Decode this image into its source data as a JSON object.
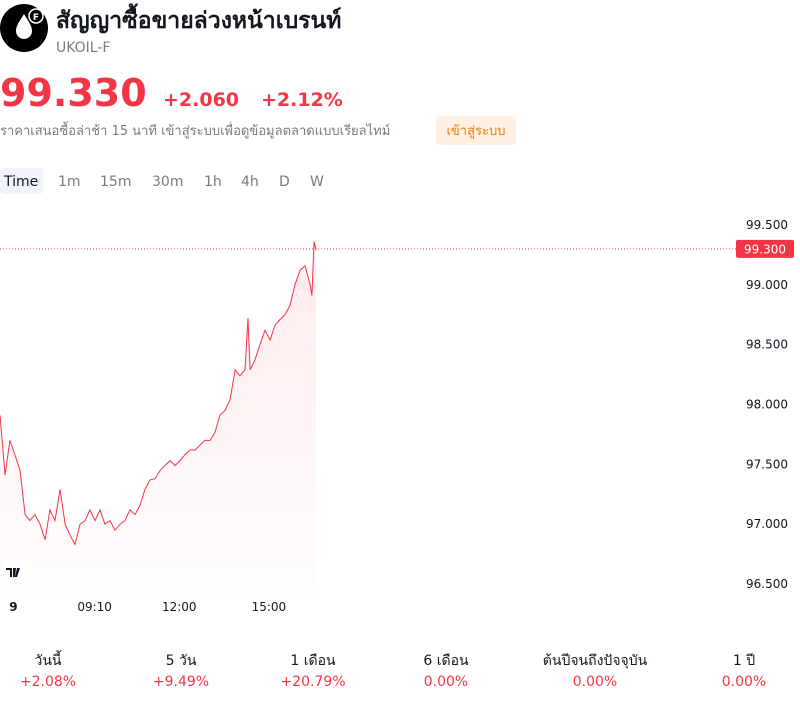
{
  "header": {
    "title": "สัญญาซื้อขายล่วงหน้าเบรนท์",
    "symbol": "UKOIL-F",
    "price": "99.330",
    "change": "+2.060",
    "change_percent": "+2.12%",
    "delay_note": "ราคาเสนอซื้อล่าช้า 15 นาที เข้าสู่ระบบเพื่อดูข้อมูลตลาดแบบเรียลไทม์",
    "login_button": "เข้าสู่ระบบ"
  },
  "timeframes": [
    "Time",
    "1m",
    "15m",
    "30m",
    "1h",
    "4h",
    "D",
    "W"
  ],
  "chart_data": {
    "type": "line",
    "color": "#f23645",
    "x": [
      6,
      6.17,
      6.33,
      6.5,
      6.67,
      6.84,
      7,
      7.17,
      7.34,
      7.51,
      7.67,
      7.84,
      8.01,
      8.18,
      8.34,
      8.51,
      8.68,
      8.85,
      9.01,
      9.18,
      9.35,
      9.51,
      9.68,
      9.85,
      10.02,
      10.18,
      10.35,
      10.52,
      10.69,
      10.85,
      11.02,
      11.19,
      11.36,
      11.52,
      11.69,
      11.86,
      12.02,
      12.19,
      12.36,
      12.53,
      12.69,
      12.86,
      13.03,
      13.2,
      13.36,
      13.53,
      13.7,
      13.87,
      14.03,
      14.2,
      14.3,
      14.37,
      14.53,
      14.7,
      14.87,
      15.04,
      15.2,
      15.37,
      15.54,
      15.71,
      15.87,
      16.04,
      16.21,
      16.38,
      16.44,
      16.51,
      16.58
    ],
    "series": [
      {
        "name": "UKOIL-F",
        "values": [
          97.91,
          97.41,
          97.7,
          97.58,
          97.45,
          97.08,
          97.03,
          97.08,
          97,
          96.87,
          97.12,
          97.03,
          97.29,
          97,
          96.91,
          96.83,
          97,
          97.03,
          97.12,
          97.03,
          97.12,
          97,
          97.03,
          96.95,
          97,
          97.03,
          97.12,
          97.08,
          97.16,
          97.29,
          97.37,
          97.38,
          97.45,
          97.49,
          97.53,
          97.49,
          97.53,
          97.58,
          97.62,
          97.62,
          97.66,
          97.7,
          97.7,
          97.77,
          97.91,
          97.95,
          98.04,
          98.29,
          98.24,
          98.29,
          98.72,
          98.29,
          98.37,
          98.5,
          98.62,
          98.54,
          98.66,
          98.71,
          98.75,
          98.83,
          99,
          99.12,
          99.16,
          99,
          98.91,
          99.36,
          99.29
        ]
      }
    ],
    "xlim": [
      6,
      30.6
    ],
    "xticks": [
      {
        "value": 6.45,
        "label": "9"
      },
      {
        "value": 9.1667,
        "label": "09:10"
      },
      {
        "value": 12,
        "label": "12:00"
      },
      {
        "value": 15,
        "label": "15:00"
      }
    ],
    "ylim": [
      96.4,
      99.7
    ],
    "yticks": [
      {
        "value": 96.5,
        "label": "96.500"
      },
      {
        "value": 97,
        "label": "97.000"
      },
      {
        "value": 97.5,
        "label": "97.500"
      },
      {
        "value": 98,
        "label": "98.000"
      },
      {
        "value": 98.5,
        "label": "98.500"
      },
      {
        "value": 99,
        "label": "99.000"
      },
      {
        "value": 99.5,
        "label": "99.500"
      }
    ],
    "last_price_line": {
      "value": 99.3,
      "label": "99.300"
    }
  },
  "performance": [
    {
      "label": "วันนี้",
      "value": "+2.08%"
    },
    {
      "label": "5 วัน",
      "value": "+9.49%"
    },
    {
      "label": "1 เดือน",
      "value": "+20.79%"
    },
    {
      "label": "6 เดือน",
      "value": "0.00%"
    },
    {
      "label": "ต้นปีจนถึงปัจจุบัน",
      "value": "0.00%"
    },
    {
      "label": "1 ปี",
      "value": "0.00%"
    }
  ]
}
